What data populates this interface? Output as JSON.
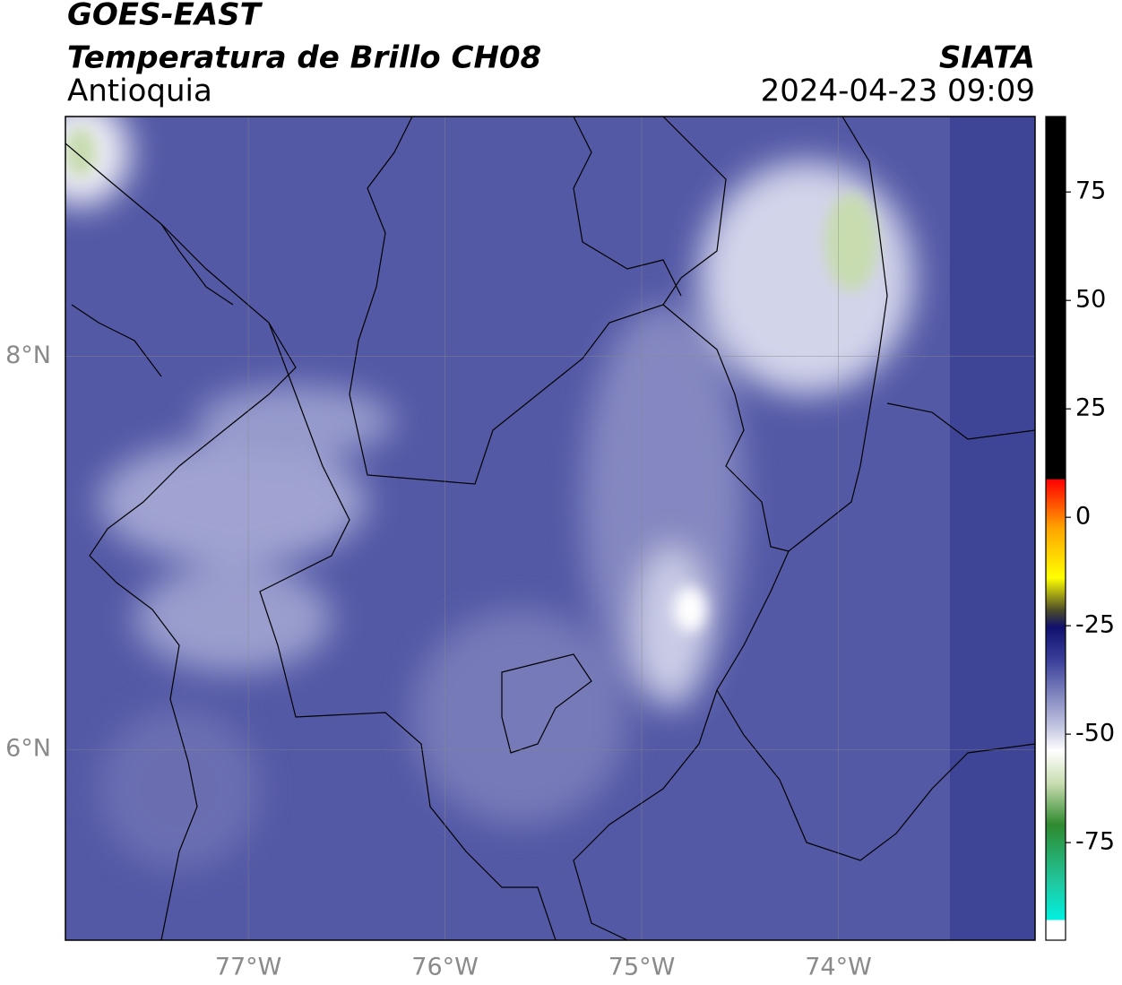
{
  "header": {
    "title": "GOES-EAST",
    "subtitle": "Temperatura de Brillo CH08",
    "region": "Antioquia",
    "source": "SIATA",
    "timestamp": "2024-04-23 09:09"
  },
  "map": {
    "xlim": [
      -77.93,
      -73.0
    ],
    "ylim": [
      5.03,
      9.22
    ],
    "xticks": [
      {
        "value": -77,
        "label": "77°W"
      },
      {
        "value": -76,
        "label": "76°W"
      },
      {
        "value": -75,
        "label": "75°W"
      },
      {
        "value": -74,
        "label": "74°W"
      }
    ],
    "yticks": [
      {
        "value": 6,
        "label": "6°N"
      },
      {
        "value": 8,
        "label": "8°N"
      }
    ],
    "grid": true
  },
  "colorbar": {
    "lim": [
      -97.5,
      92.4
    ],
    "ticks": [
      -75,
      -50,
      -25,
      0,
      25,
      50,
      75
    ]
  }
}
